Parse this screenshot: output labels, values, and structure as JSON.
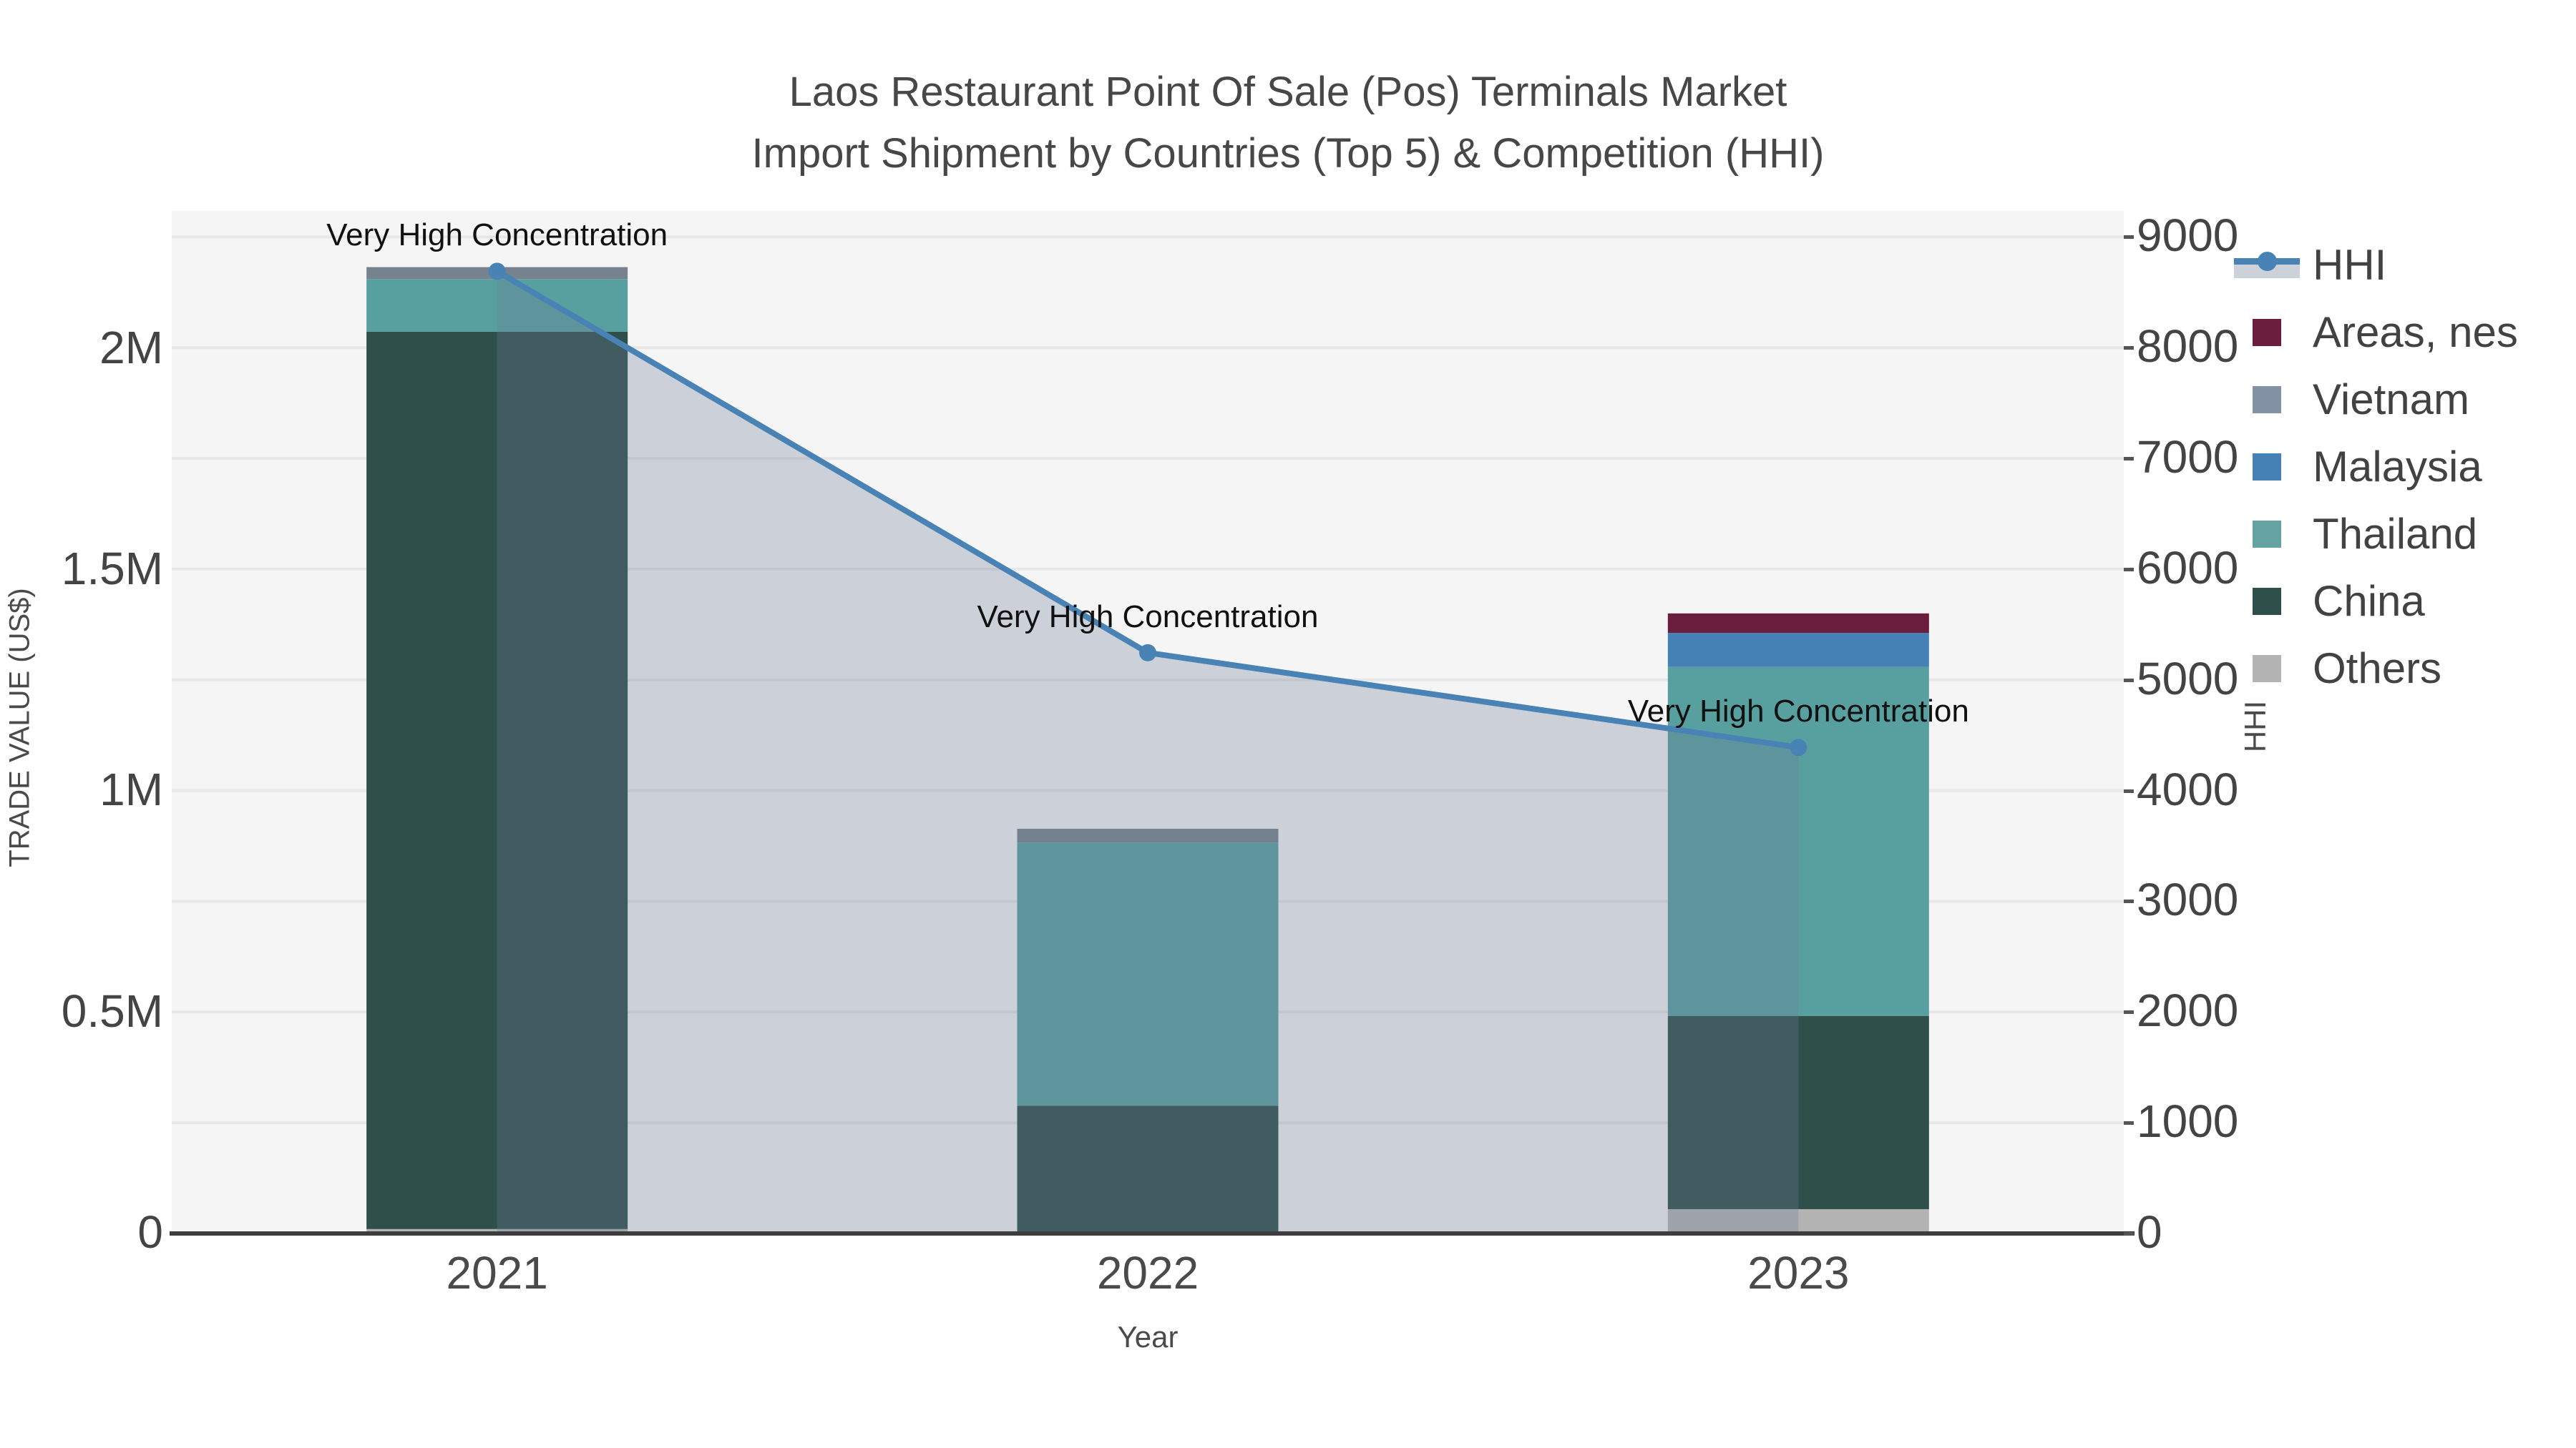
{
  "title": {
    "line1": "Laos Restaurant Point Of Sale (Pos) Terminals Market",
    "line2": "Import Shipment by Countries (Top 5) & Competition (HHI)"
  },
  "colors": {
    "plot_background": "#F5F5F5",
    "gridline": "#E7E7E7",
    "axis_line": "#3D3D3D",
    "text": "#444444",
    "hhi_line": "#4983B5",
    "hhi_fill": "rgba(108,124,148,0.30)"
  },
  "chart_data": {
    "type": "combo-stacked-bar-line",
    "categories": [
      "2021",
      "2022",
      "2023"
    ],
    "xlabel": "Year",
    "y1": {
      "label": "TRADE VALUE (US$)",
      "max": 2312000,
      "ticks": [
        {
          "value": 0,
          "label": "0"
        },
        {
          "value": 500000,
          "label": "0.5M"
        },
        {
          "value": 1000000,
          "label": "1M"
        },
        {
          "value": 1500000,
          "label": "1.5M"
        },
        {
          "value": 2000000,
          "label": "2M"
        }
      ]
    },
    "y2": {
      "label": "HHI",
      "max": 9235,
      "tick_step": 1000,
      "ticks": [
        0,
        1000,
        2000,
        3000,
        4000,
        5000,
        6000,
        7000,
        8000,
        9000
      ]
    },
    "bar_series_stack_bottom_to_top": [
      {
        "name": "Others",
        "color": "#B3B3B3",
        "values": [
          10000,
          0,
          55000
        ]
      },
      {
        "name": "China",
        "color": "#2E4F4A",
        "values": [
          2029000,
          289000,
          437000
        ]
      },
      {
        "name": "Thailand",
        "color": "#58A09F",
        "values": [
          119000,
          595000,
          789000
        ]
      },
      {
        "name": "Malaysia",
        "color": "#4681B5",
        "values": [
          0,
          0,
          77000
        ]
      },
      {
        "name": "Vietnam",
        "color": "#76838F",
        "values": [
          27000,
          31000,
          0
        ]
      },
      {
        "name": "Areas, nes",
        "color": "#6B1D3D",
        "values": [
          0,
          0,
          44000
        ]
      }
    ],
    "line_series": {
      "name": "HHI",
      "color": "#4983B5",
      "fill_color": "rgba(108,124,148,0.30)",
      "values": [
        8690,
        5245,
        4390
      ]
    },
    "annotations": [
      {
        "text": "Very High Concentration",
        "category_index": 0
      },
      {
        "text": "Very High Concentration",
        "category_index": 1
      },
      {
        "text": "Very High Concentration",
        "category_index": 2
      }
    ],
    "legend_order": [
      {
        "label": "HHI",
        "type": "line",
        "color": "#4983B5"
      },
      {
        "label": "Areas, nes",
        "type": "swatch",
        "color": "#6B1D3D"
      },
      {
        "label": "Vietnam",
        "type": "swatch",
        "color": "#8291A3"
      },
      {
        "label": "Malaysia",
        "type": "swatch",
        "color": "#4681B5"
      },
      {
        "label": "Thailand",
        "type": "swatch",
        "color": "#64A3A2"
      },
      {
        "label": "China",
        "type": "swatch",
        "color": "#2E4F4A"
      },
      {
        "label": "Others",
        "type": "swatch",
        "color": "#B3B3B3"
      }
    ]
  }
}
